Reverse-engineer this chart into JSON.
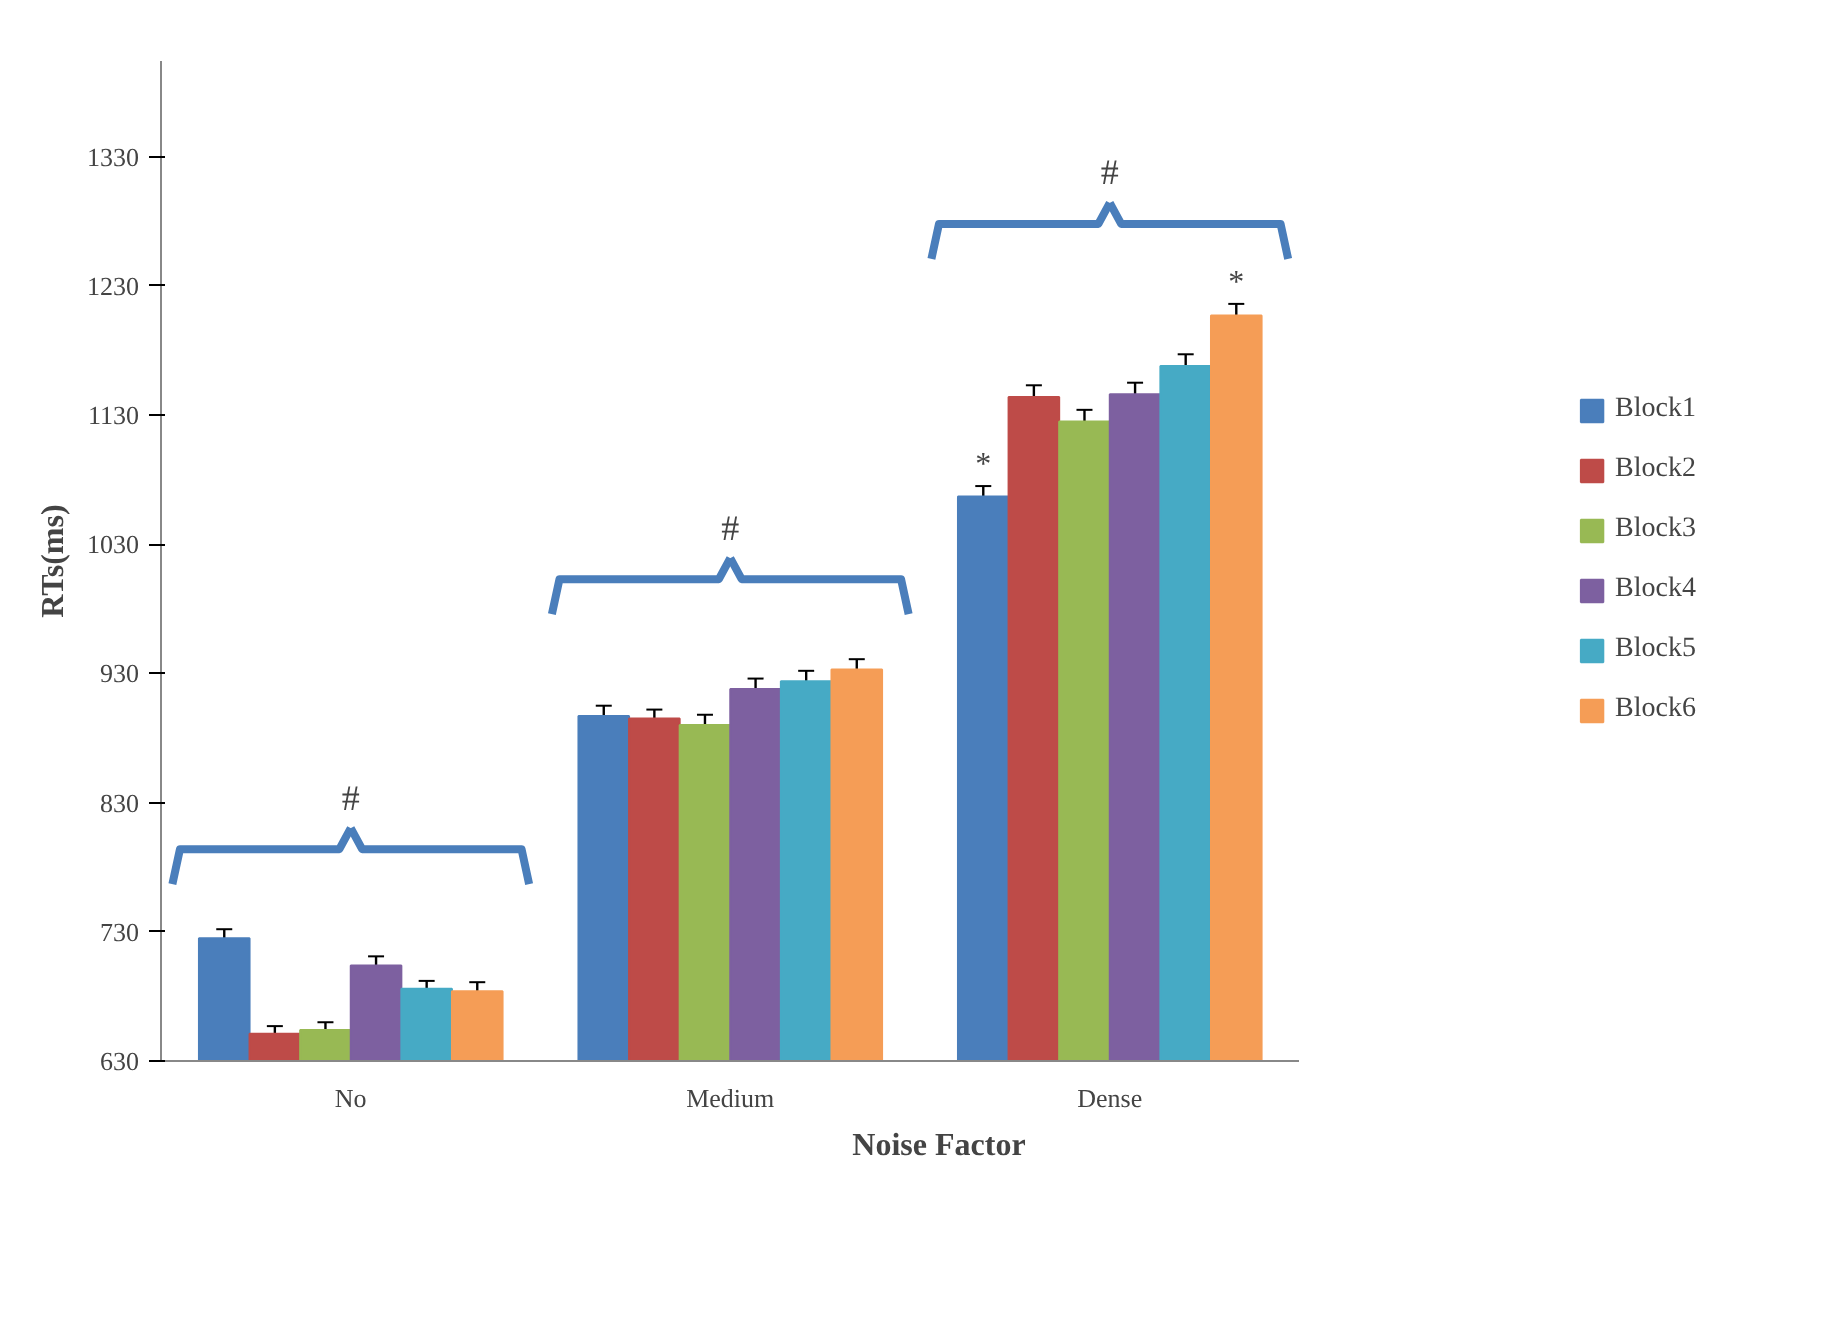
{
  "chart_data": {
    "type": "bar",
    "ylabel": "RTs(ms)",
    "xlabel": "Noise Factor",
    "categories": [
      "No",
      "Medium",
      "Dense"
    ],
    "series": [
      {
        "name": "Block1",
        "color": "#4a7ebb",
        "values": [
          725,
          897,
          1067
        ],
        "errors": [
          7,
          8,
          8
        ],
        "value_labels": [
          null,
          null,
          "*"
        ]
      },
      {
        "name": "Block2",
        "color": "#be4b48",
        "values": [
          651,
          895,
          1144
        ],
        "errors": [
          6,
          7,
          9
        ]
      },
      {
        "name": "Block3",
        "color": "#98b954",
        "values": [
          654,
          890,
          1125
        ],
        "errors": [
          6,
          8,
          9
        ]
      },
      {
        "name": "Block4",
        "color": "#7d60a0",
        "values": [
          704,
          918,
          1146
        ],
        "errors": [
          7,
          8,
          9
        ]
      },
      {
        "name": "Block5",
        "color": "#46aac5",
        "values": [
          686,
          924,
          1168
        ],
        "errors": [
          6,
          8,
          9
        ]
      },
      {
        "name": "Block6",
        "color": "#f59d56",
        "values": [
          684,
          933,
          1207
        ],
        "errors": [
          7,
          8,
          9
        ],
        "value_labels": [
          null,
          null,
          "*"
        ]
      }
    ],
    "ylim": [
      630,
      1404
    ],
    "yticks": [
      630,
      730,
      830,
      930,
      1030,
      1130,
      1230,
      1330
    ],
    "grid": false,
    "legend": "right",
    "annotations": [
      "#",
      "#",
      "#"
    ]
  }
}
